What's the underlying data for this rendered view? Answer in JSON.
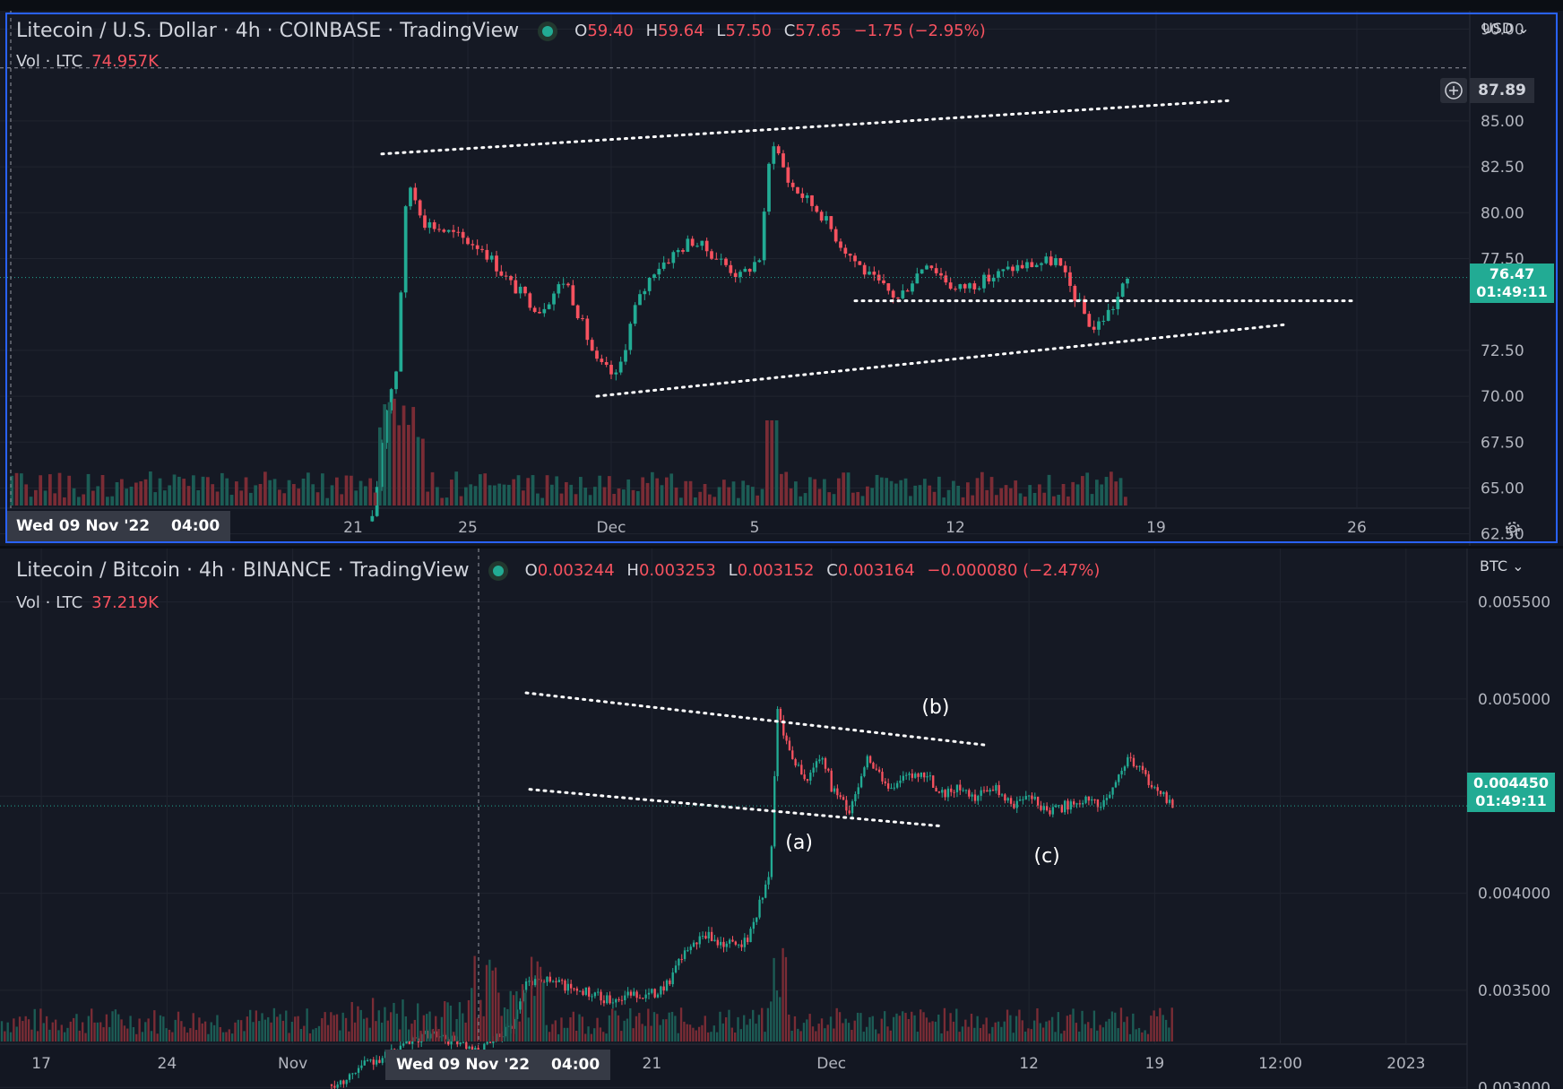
{
  "colors": {
    "up": "#22ab94",
    "down": "#f7525f",
    "background": "#151924",
    "grid": "#20242f",
    "text": "#b2b5be",
    "accent": "#2962ff",
    "last_price_bg": "#22ab94"
  },
  "icons": {
    "settings": "gear-icon",
    "add_alert": "plus-circle-icon",
    "currency_menu": "chevron-down-icon"
  },
  "chart_data": [
    {
      "type": "candlestick",
      "title": "Litecoin / U.S. Dollar · 4h · COINBASE · TradingView",
      "ohlc": {
        "open_label": "O",
        "open": "59.40",
        "high_label": "H",
        "high": "59.64",
        "low_label": "L",
        "low": "57.50",
        "close_label": "C",
        "close": "57.65",
        "change": "−1.75 (−2.95%)"
      },
      "volume_label": "Vol · LTC",
      "volume_value": "74.957K",
      "currency": "USD",
      "y_ticks": [
        "90.00",
        "85.00",
        "82.50",
        "80.00",
        "77.50",
        "72.50",
        "70.00",
        "67.50",
        "65.00",
        "62.50"
      ],
      "ylim": [
        61.8,
        91
      ],
      "x_ticks": [
        {
          "label": "21",
          "day": 21
        },
        {
          "label": "25",
          "day": 25
        },
        {
          "label": "Dec",
          "day": 30
        },
        {
          "label": "5",
          "day": 35
        },
        {
          "label": "12",
          "day": 42
        },
        {
          "label": "19",
          "day": 49
        },
        {
          "label": "26",
          "day": 56
        }
      ],
      "xlim": [
        9,
        60
      ],
      "last_price": "76.47",
      "countdown": "01:49:11",
      "crosshair_price": "87.89",
      "crosshair_date": "Wed 09 Nov '22",
      "crosshair_time": "04:00",
      "path": [
        [
          9.0,
          63.1
        ],
        [
          13.0,
          63.2
        ],
        [
          17.0,
          63.0
        ],
        [
          20.5,
          63.1
        ],
        [
          21.7,
          63.2
        ],
        [
          22.1,
          69.0
        ],
        [
          22.5,
          71.5
        ],
        [
          22.9,
          81.8
        ],
        [
          23.5,
          79.5
        ],
        [
          24.5,
          78.8
        ],
        [
          25.5,
          78.1
        ],
        [
          26.5,
          76.1
        ],
        [
          27.5,
          74.7
        ],
        [
          28.4,
          76.4
        ],
        [
          29.5,
          71.8
        ],
        [
          30.2,
          71.0
        ],
        [
          30.8,
          74.7
        ],
        [
          31.5,
          76.9
        ],
        [
          32.8,
          78.5
        ],
        [
          33.5,
          77.8
        ],
        [
          34.5,
          76.5
        ],
        [
          35.2,
          77.6
        ],
        [
          35.6,
          84.2
        ],
        [
          36.2,
          81.6
        ],
        [
          37.3,
          80.0
        ],
        [
          38.0,
          78.3
        ],
        [
          39.0,
          76.5
        ],
        [
          40.0,
          75.3
        ],
        [
          41.0,
          77.4
        ],
        [
          42.0,
          75.8
        ],
        [
          43.0,
          76.3
        ],
        [
          44.0,
          77.0
        ],
        [
          45.5,
          77.4
        ],
        [
          46.8,
          73.6
        ],
        [
          47.5,
          74.9
        ],
        [
          48.0,
          76.4
        ]
      ],
      "trendlines": [
        {
          "x": [
            22.0,
            51.5
          ],
          "y": [
            83.2,
            86.1
          ]
        },
        {
          "x": [
            29.5,
            53.5
          ],
          "y": [
            70.0,
            73.9
          ]
        },
        {
          "x": [
            38.5,
            56.0
          ],
          "y": [
            75.2,
            75.2
          ]
        }
      ]
    },
    {
      "type": "candlestick",
      "title": "Litecoin / Bitcoin · 4h · BINANCE · TradingView",
      "ohlc": {
        "open_label": "O",
        "open": "0.003244",
        "high_label": "H",
        "high": "0.003253",
        "low_label": "L",
        "low": "0.003152",
        "close_label": "C",
        "close": "0.003164",
        "change": "−0.000080 (−2.47%)"
      },
      "volume_label": "Vol · LTC",
      "volume_value": "37.219K",
      "currency": "BTC",
      "y_ticks": [
        "0.005500",
        "0.005000",
        "0.004500",
        "0.004000",
        "0.003500",
        "0.003000"
      ],
      "ylim": [
        0.002992,
        0.005775
      ],
      "x_ticks": [
        {
          "label": "17",
          "day": 17
        },
        {
          "label": "24",
          "day": 24
        },
        {
          "label": "Nov",
          "day": 31
        },
        {
          "label": "21",
          "day": 51
        },
        {
          "label": "Dec",
          "day": 61
        },
        {
          "label": "12",
          "day": 72
        },
        {
          "label": "19",
          "day": 79
        },
        {
          "label": "12:00",
          "day": 86
        },
        {
          "label": "2023",
          "day": 93
        }
      ],
      "xlim": [
        14.7,
        96.5
      ],
      "last_price": "0.004450",
      "countdown": "01:49:11",
      "crosshair_date": "Wed 09 Nov '22",
      "crosshair_time": "04:00",
      "annotations": [
        {
          "text": "(a)",
          "day": 59.2,
          "y": 0.00423
        },
        {
          "text": "(b)",
          "day": 66.8,
          "y": 0.004925
        },
        {
          "text": "(c)",
          "day": 73.0,
          "y": 0.00416
        }
      ],
      "path": [
        [
          14.7,
          0.00301
        ],
        [
          24.0,
          0.00301
        ],
        [
          32.0,
          0.00301
        ],
        [
          33.5,
          0.00302
        ],
        [
          35.0,
          0.00312
        ],
        [
          37.0,
          0.0032
        ],
        [
          38.5,
          0.00328
        ],
        [
          39.5,
          0.00325
        ],
        [
          40.3,
          0.00323
        ],
        [
          41.0,
          0.00317
        ],
        [
          42.0,
          0.00322
        ],
        [
          43.3,
          0.00334
        ],
        [
          44.0,
          0.00355
        ],
        [
          45.0,
          0.00356
        ],
        [
          47.0,
          0.0035
        ],
        [
          48.5,
          0.00345
        ],
        [
          50.0,
          0.00348
        ],
        [
          51.0,
          0.00348
        ],
        [
          52.0,
          0.00355
        ],
        [
          53.0,
          0.00372
        ],
        [
          54.0,
          0.00378
        ],
        [
          55.0,
          0.00374
        ],
        [
          56.3,
          0.00375
        ],
        [
          57.0,
          0.00395
        ],
        [
          57.6,
          0.0041
        ],
        [
          58.0,
          0.00495
        ],
        [
          58.6,
          0.00475
        ],
        [
          59.6,
          0.00458
        ],
        [
          60.5,
          0.00472
        ],
        [
          61.0,
          0.00455
        ],
        [
          62.0,
          0.00442
        ],
        [
          63.0,
          0.0047
        ],
        [
          64.0,
          0.00455
        ],
        [
          65.5,
          0.0046
        ],
        [
          66.5,
          0.0046
        ],
        [
          67.0,
          0.0045
        ],
        [
          68.0,
          0.00455
        ],
        [
          69.0,
          0.00448
        ],
        [
          70.0,
          0.00455
        ],
        [
          71.0,
          0.00445
        ],
        [
          72.0,
          0.00452
        ],
        [
          73.0,
          0.00442
        ],
        [
          74.0,
          0.00445
        ],
        [
          75.0,
          0.00448
        ],
        [
          76.0,
          0.00445
        ],
        [
          76.3,
          0.004488
        ],
        [
          77.5,
          0.0047
        ],
        [
          78.5,
          0.0046
        ],
        [
          79.5,
          0.0045
        ],
        [
          80.0,
          0.00444
        ]
      ],
      "trendlines": [
        {
          "x": [
            44.0,
            69.5
          ],
          "y": [
            0.005032,
            0.004764
          ]
        },
        {
          "x": [
            44.2,
            67.2
          ],
          "y": [
            0.004535,
            0.004345
          ]
        }
      ]
    }
  ]
}
